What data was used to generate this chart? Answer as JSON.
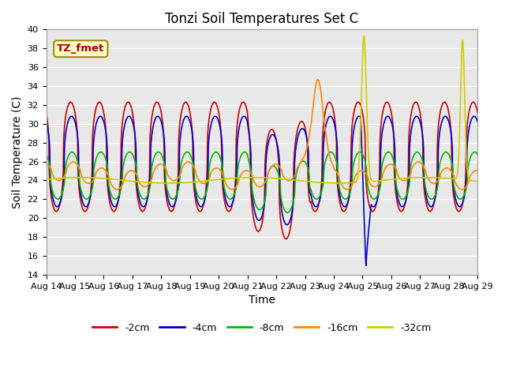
{
  "title": "Tonzi Soil Temperatures Set C",
  "xlabel": "Time",
  "ylabel": "Soil Temperature (C)",
  "ylim": [
    14,
    40
  ],
  "xlim": [
    0,
    15
  ],
  "xtick_labels": [
    "Aug 14",
    "Aug 15",
    "Aug 16",
    "Aug 17",
    "Aug 18",
    "Aug 19",
    "Aug 20",
    "Aug 21",
    "Aug 22",
    "Aug 23",
    "Aug 24",
    "Aug 25",
    "Aug 26",
    "Aug 27",
    "Aug 28",
    "Aug 29"
  ],
  "ytick_values": [
    14,
    16,
    18,
    20,
    22,
    24,
    26,
    28,
    30,
    32,
    34,
    36,
    38,
    40
  ],
  "legend_labels": [
    "-2cm",
    "-4cm",
    "-8cm",
    "-16cm",
    "-32cm"
  ],
  "line_colors": [
    "#cc0000",
    "#0000cc",
    "#00bb00",
    "#ff8800",
    "#cccc00"
  ],
  "annotation_text": "TZ_fmet",
  "annotation_fg": "#aa0000",
  "annotation_bg": "#ffffcc",
  "annotation_border": "#aa8800",
  "plot_bg_color": "#e8e8e8",
  "grid_color": "#ffffff",
  "title_fontsize": 12,
  "axis_fontsize": 10,
  "tick_fontsize": 8,
  "linewidth": 1.2
}
